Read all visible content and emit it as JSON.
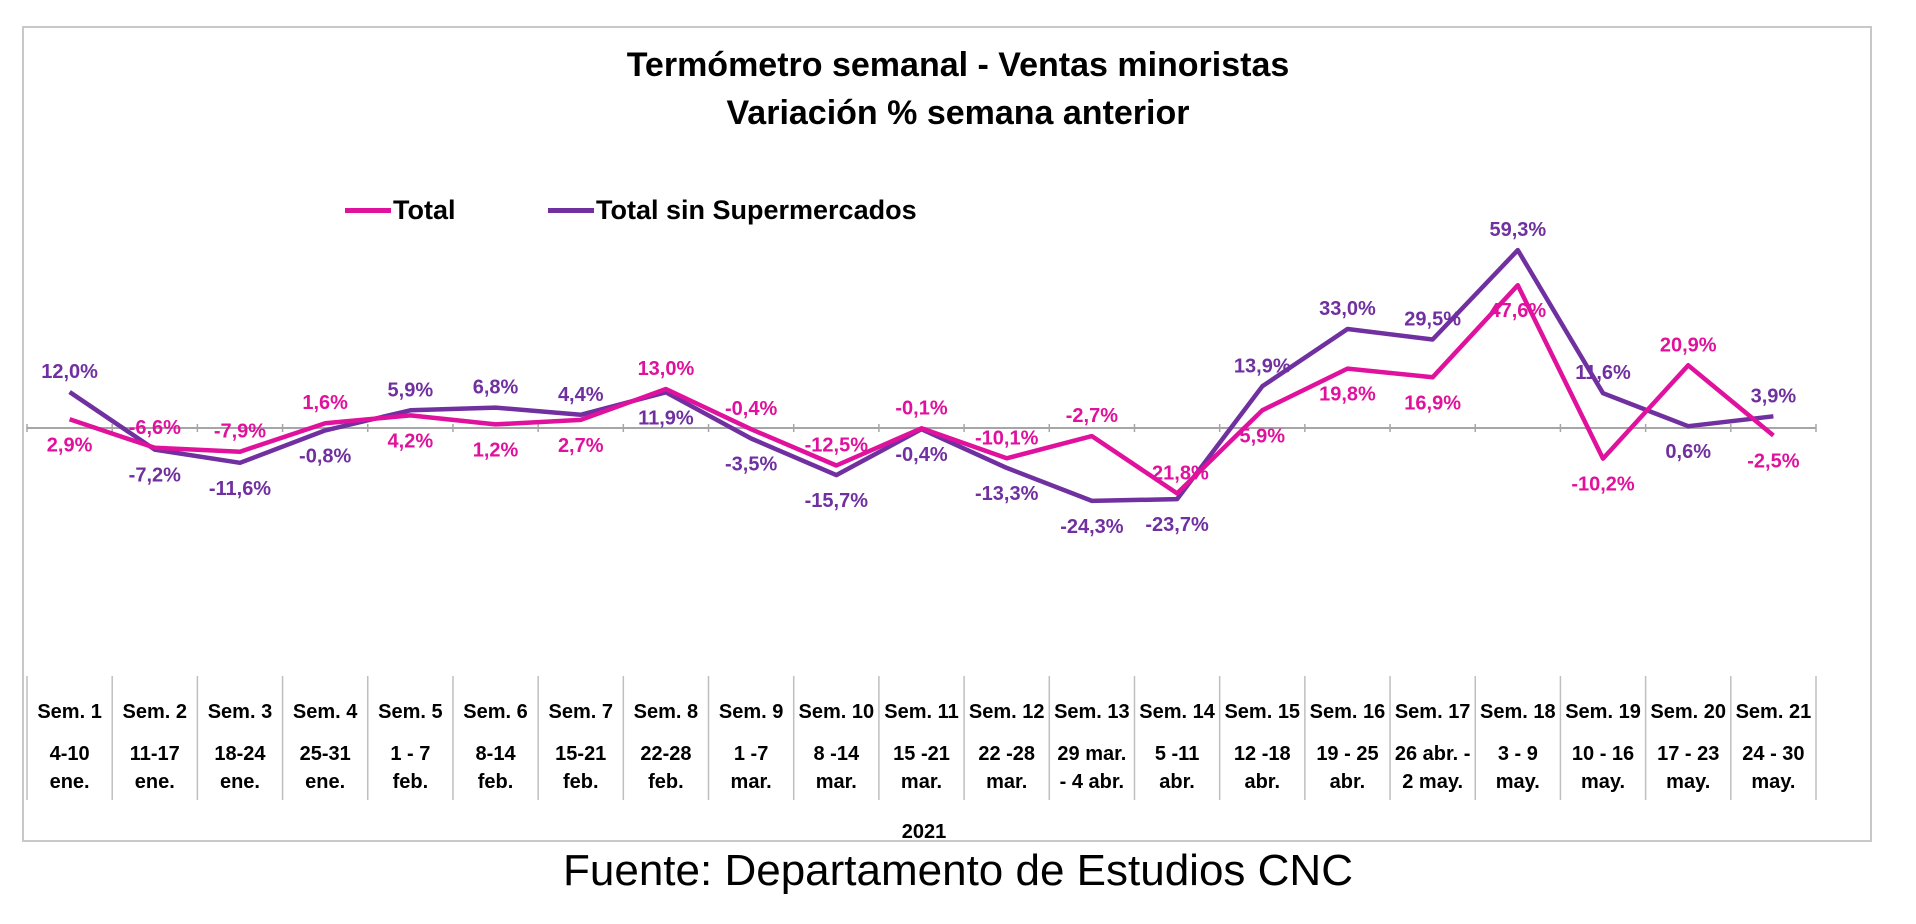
{
  "source_text": "Fuente: Departamento de Estudios CNC",
  "chart_data": {
    "type": "line",
    "title": "Termómetro semanal - Ventas minoristas",
    "subtitle": "Variación % semana anterior",
    "year_label": "2021",
    "legend_position": "top-left",
    "grid": false,
    "ylim": [
      -60,
      70
    ],
    "categories": [
      {
        "week": "Sem. 1",
        "dates": [
          "4-10",
          "ene."
        ]
      },
      {
        "week": "Sem. 2",
        "dates": [
          "11-17",
          "ene."
        ]
      },
      {
        "week": "Sem. 3",
        "dates": [
          "18-24",
          "ene."
        ]
      },
      {
        "week": "Sem. 4",
        "dates": [
          "25-31",
          "ene."
        ]
      },
      {
        "week": "Sem. 5",
        "dates": [
          "1 - 7",
          "feb."
        ]
      },
      {
        "week": "Sem. 6",
        "dates": [
          "8-14",
          "feb."
        ]
      },
      {
        "week": "Sem. 7",
        "dates": [
          "15-21",
          "feb."
        ]
      },
      {
        "week": "Sem. 8",
        "dates": [
          "22-28",
          "feb."
        ]
      },
      {
        "week": "Sem. 9",
        "dates": [
          "1 -7",
          "mar."
        ]
      },
      {
        "week": "Sem. 10",
        "dates": [
          "8 -14",
          "mar."
        ]
      },
      {
        "week": "Sem. 11",
        "dates": [
          "15 -21",
          "mar."
        ]
      },
      {
        "week": "Sem. 12",
        "dates": [
          "22 -28",
          "mar."
        ]
      },
      {
        "week": "Sem. 13",
        "dates": [
          "29 mar.",
          "- 4 abr."
        ]
      },
      {
        "week": "Sem. 14",
        "dates": [
          "5 -11",
          "abr."
        ]
      },
      {
        "week": "Sem. 15",
        "dates": [
          "12 -18",
          "abr."
        ]
      },
      {
        "week": "Sem. 16",
        "dates": [
          "19 - 25",
          "abr."
        ]
      },
      {
        "week": "Sem. 17",
        "dates": [
          "26 abr. -",
          "2 may."
        ]
      },
      {
        "week": "Sem. 18",
        "dates": [
          "3 - 9",
          "may."
        ]
      },
      {
        "week": "Sem. 19",
        "dates": [
          "10 - 16",
          "may."
        ]
      },
      {
        "week": "Sem. 20",
        "dates": [
          "17 - 23",
          "may."
        ]
      },
      {
        "week": "Sem. 21",
        "dates": [
          "24 - 30",
          "may."
        ]
      }
    ],
    "series": [
      {
        "name": "Total",
        "color": "#e0119d",
        "values": [
          2.9,
          -6.6,
          -7.9,
          1.6,
          4.2,
          1.2,
          2.7,
          13.0,
          -0.4,
          -12.5,
          -0.1,
          -10.1,
          -2.7,
          -21.8,
          5.9,
          19.8,
          16.9,
          47.6,
          -10.2,
          20.9,
          -2.5
        ],
        "labels": [
          "2,9%",
          "-6,6%",
          "-7,9%",
          "1,6%",
          "4,2%",
          "1,2%",
          "2,7%",
          "13,0%",
          "-0,4%",
          "-12,5%",
          "-0,1%",
          "-10,1%",
          "-2,7%",
          "-21,8%",
          "5,9%",
          "19,8%",
          "16,9%",
          "47,6%",
          "-10,2%",
          "20,9%",
          "-2,5%"
        ]
      },
      {
        "name": "Total sin Supermercados",
        "color": "#7030a0",
        "values": [
          12.0,
          -7.2,
          -11.6,
          -0.8,
          5.9,
          6.8,
          4.4,
          11.9,
          -3.5,
          -15.7,
          -0.4,
          -13.3,
          -24.3,
          -23.7,
          13.9,
          33.0,
          29.5,
          59.3,
          11.6,
          0.6,
          3.9
        ],
        "labels": [
          "12,0%",
          "-7,2%",
          "-11,6%",
          "-0,8%",
          "5,9%",
          "6,8%",
          "4,4%",
          "11,9%",
          "-3,5%",
          "-15,7%",
          "-0,4%",
          "-13,3%",
          "-24,3%",
          "-23,7%",
          "13,9%",
          "33,0%",
          "29,5%",
          "59,3%",
          "11,6%",
          "0,6%",
          "3,9%"
        ]
      }
    ]
  }
}
